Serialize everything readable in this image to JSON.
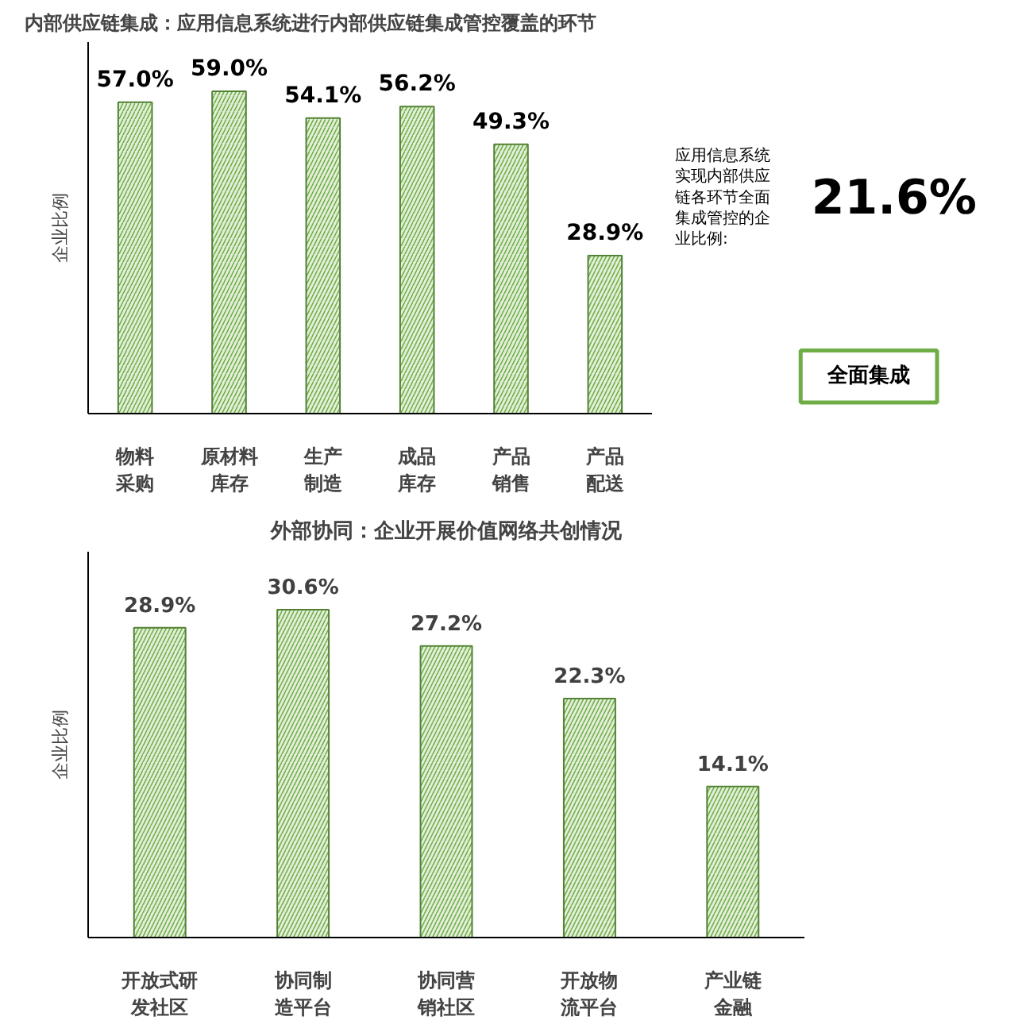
{
  "chart_data": [
    {
      "type": "bar",
      "title": "内部供应链集成：应用信息系统进行内部供应链集成管控覆盖的环节",
      "ylabel": "企业比例",
      "categories": [
        "物料采购",
        "原材料库存",
        "生产制造",
        "成品库存",
        "产品销售",
        "产品配送"
      ],
      "values": [
        57.0,
        59.0,
        54.1,
        56.2,
        49.3,
        28.9
      ],
      "value_labels": [
        "57.0%",
        "59.0%",
        "54.1%",
        "56.2%",
        "49.3%",
        "28.9%"
      ],
      "color": "#e2efd9",
      "ylim": [
        0,
        68
      ],
      "tick_labels": "x",
      "grid": false,
      "annotations": [
        "应用信息系统实现内部供应链各环节全面集成管控的企业比例:",
        "21.6%",
        "全面集成"
      ]
    },
    {
      "type": "bar",
      "title": "外部协同：企业开展价值网络共创情况",
      "ylabel": "企业比例",
      "categories": [
        "开放式研发社区",
        "协同制造平台",
        "协同营销社区",
        "开放物流平台",
        "产业链金融"
      ],
      "values": [
        28.9,
        30.6,
        27.2,
        22.3,
        14.1
      ],
      "value_labels": [
        "28.9%",
        "30.6%",
        "27.2%",
        "22.3%",
        "14.1%"
      ],
      "color": "#e2efd9",
      "ylim": [
        0,
        36
      ],
      "tick_labels": "x",
      "grid": false
    }
  ]
}
